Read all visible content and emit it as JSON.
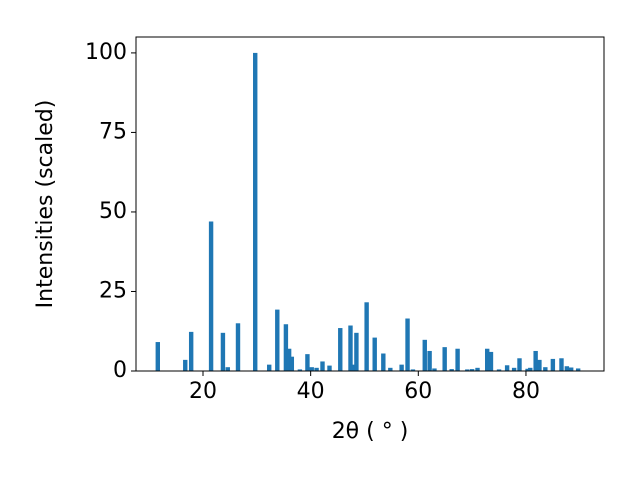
{
  "chart_data": {
    "type": "bar",
    "xlabel": "2θ ( ° )",
    "ylabel": "Intensities (scaled)",
    "x": [
      11.6,
      16.7,
      17.8,
      21.5,
      23.7,
      24.6,
      26.5,
      29.7,
      32.3,
      33.8,
      35.4,
      36.0,
      36.5,
      38.0,
      39.4,
      40.2,
      41.1,
      42.2,
      43.5,
      45.5,
      47.4,
      47.8,
      48.5,
      50.4,
      51.9,
      53.5,
      54.8,
      56.9,
      58.0,
      59.0,
      61.2,
      62.1,
      63.0,
      64.9,
      66.2,
      67.3,
      69.1,
      70.0,
      71.0,
      72.8,
      73.5,
      75.0,
      76.5,
      77.8,
      78.8,
      80.3,
      80.8,
      81.8,
      82.5,
      83.6,
      85.0,
      86.6,
      87.6,
      88.4,
      89.7
    ],
    "values": [
      9.1,
      3.5,
      12.3,
      47,
      12,
      1.2,
      15,
      100,
      2,
      19.3,
      14.7,
      7,
      4.5,
      0.5,
      5.3,
      1.2,
      1,
      3,
      1.7,
      13.5,
      14.3,
      2,
      12,
      21.6,
      10.5,
      5.5,
      1,
      2,
      16.5,
      0.5,
      9.8,
      6.3,
      0.8,
      7.5,
      0.6,
      7,
      0.5,
      0.6,
      1,
      7,
      6,
      0.5,
      1.8,
      1,
      4,
      0.7,
      1,
      6.3,
      3.5,
      1.2,
      3.8,
      4,
      1.5,
      1.1,
      0.8
    ],
    "color": "#1f77b4",
    "xlim": [
      7.55,
      94.5
    ],
    "xticks": [
      20,
      40,
      60,
      80
    ],
    "ylim": [
      0,
      105
    ],
    "yticks": [
      0,
      25,
      50,
      75,
      100
    ]
  }
}
